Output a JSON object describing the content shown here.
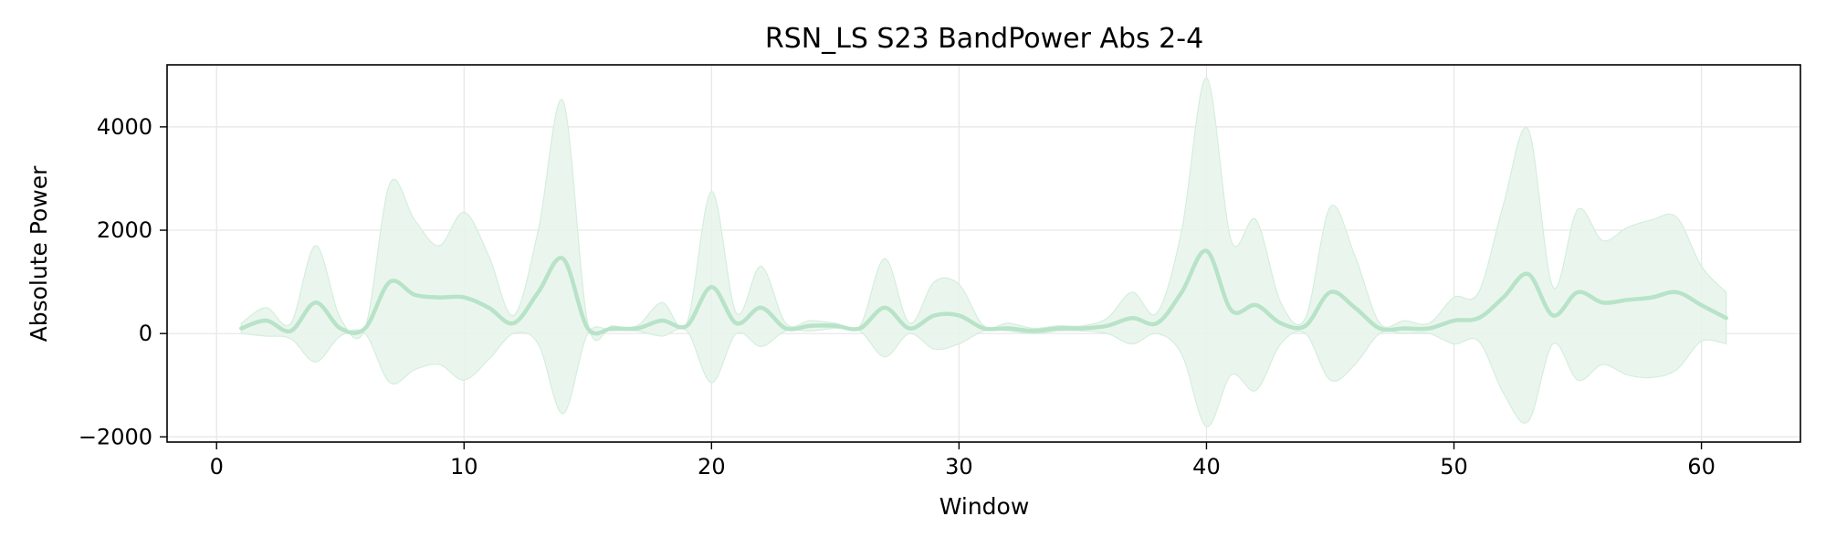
{
  "chart_data": {
    "type": "line",
    "title": "RSN_LS S23 BandPower Abs 2-4",
    "xlabel": "Window",
    "ylabel": "Absolute Power",
    "xlim": [
      -2,
      64
    ],
    "ylim": [
      -2100,
      5200
    ],
    "xticks": [
      0,
      10,
      20,
      30,
      40,
      50,
      60
    ],
    "yticks": [
      -2000,
      0,
      2000,
      4000
    ],
    "grid": true,
    "legend": "none",
    "colors": {
      "line": "#b8e3c8",
      "band": "#e6f5ea",
      "band_edge": "#d4eedd",
      "grid": "#e6e6e6",
      "axes": "#000000"
    },
    "series": [
      {
        "x": [
          1,
          2,
          3,
          4,
          5,
          6,
          7,
          8,
          9,
          10,
          11,
          12,
          13,
          14,
          15,
          16,
          17,
          18,
          19,
          20,
          21,
          22,
          23,
          24,
          25,
          26,
          27,
          28,
          29,
          30,
          31,
          32,
          33,
          34,
          35,
          36,
          37,
          38,
          39,
          40,
          41,
          42,
          43,
          44,
          45,
          46,
          47,
          48,
          49,
          50,
          51,
          52,
          53,
          54,
          55,
          56,
          57,
          58,
          59,
          60,
          61
        ],
        "values": [
          100,
          250,
          50,
          600,
          100,
          100,
          1000,
          750,
          700,
          700,
          500,
          200,
          800,
          1450,
          100,
          100,
          100,
          250,
          150,
          900,
          200,
          500,
          100,
          150,
          150,
          100,
          500,
          100,
          350,
          350,
          100,
          100,
          50,
          100,
          100,
          150,
          300,
          200,
          800,
          1600,
          450,
          550,
          200,
          150,
          800,
          500,
          100,
          100,
          100,
          250,
          300,
          700,
          1150,
          350,
          800,
          600,
          650,
          700,
          800,
          550,
          300
        ],
        "upper": [
          200,
          500,
          200,
          1700,
          300,
          100,
          2900,
          2200,
          1700,
          2350,
          1500,
          350,
          2000,
          4500,
          200,
          150,
          150,
          600,
          200,
          2750,
          400,
          1300,
          200,
          250,
          200,
          150,
          1450,
          200,
          1000,
          950,
          150,
          200,
          100,
          150,
          150,
          300,
          800,
          400,
          2000,
          4950,
          1800,
          2200,
          600,
          300,
          2450,
          1500,
          200,
          250,
          200,
          700,
          800,
          2500,
          3950,
          900,
          2400,
          1800,
          2050,
          2200,
          2250,
          1300,
          800
        ],
        "lower": [
          0,
          -50,
          -100,
          -550,
          -50,
          0,
          -950,
          -700,
          -600,
          -900,
          -500,
          0,
          -200,
          -1550,
          0,
          50,
          50,
          -50,
          50,
          -950,
          0,
          -250,
          50,
          50,
          100,
          50,
          -450,
          0,
          -300,
          -200,
          50,
          50,
          0,
          50,
          50,
          0,
          -200,
          0,
          -400,
          -1800,
          -800,
          -1100,
          -200,
          0,
          -900,
          -600,
          0,
          0,
          0,
          -200,
          -150,
          -1150,
          -1700,
          -200,
          -900,
          -600,
          -800,
          -850,
          -700,
          -150,
          -200
        ]
      }
    ]
  }
}
